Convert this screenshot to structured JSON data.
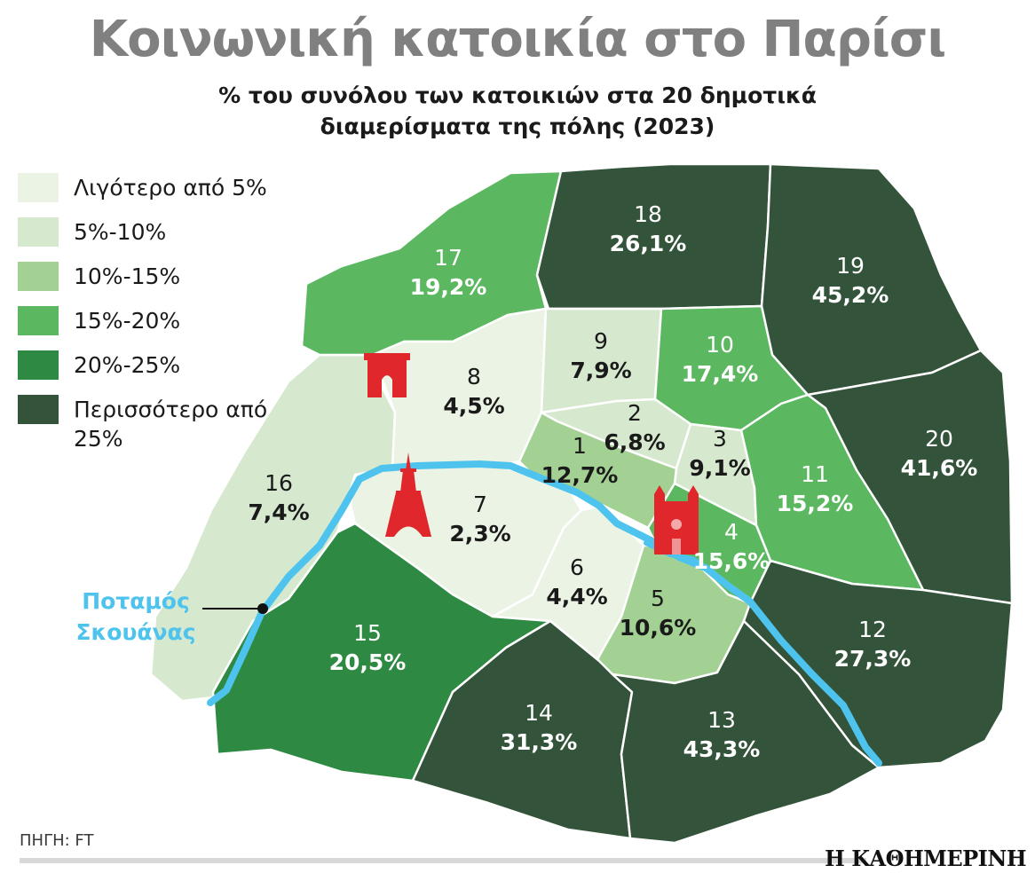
{
  "title": "Κοινωνική κατοικία στο Παρίσι",
  "subtitle_line1": "% του συνόλου των κατοικιών στα 20 δημοτικά",
  "subtitle_line2": "διαμερίσματα της πόλης (2023)",
  "legend": [
    {
      "label": "Λιγότερο από 5%",
      "color": "#eaf3e4"
    },
    {
      "label": "5%-10%",
      "color": "#d6e9cf"
    },
    {
      "label": "10%-15%",
      "color": "#a3d193"
    },
    {
      "label": "15%-20%",
      "color": "#5cb860"
    },
    {
      "label": "20%-25%",
      "color": "#2e8a42"
    },
    {
      "label": "Περισσότερο από 25%",
      "color": "#33543a"
    }
  ],
  "chart_data": {
    "type": "choropleth",
    "title": "Κοινωνική κατοικία στο Παρίσι",
    "subtitle": "% του συνόλου των κατοικιών στα 20 δημοτικά διαμερίσματα της πόλης (2023)",
    "arrondissements": [
      {
        "id": "1",
        "label": "12,7%",
        "value": 12.7
      },
      {
        "id": "2",
        "label": "6,8%",
        "value": 6.8
      },
      {
        "id": "3",
        "label": "9,1%",
        "value": 9.1
      },
      {
        "id": "4",
        "label": "15,6%",
        "value": 15.6
      },
      {
        "id": "5",
        "label": "10,6%",
        "value": 10.6
      },
      {
        "id": "6",
        "label": "4,4%",
        "value": 4.4
      },
      {
        "id": "7",
        "label": "2,3%",
        "value": 2.3
      },
      {
        "id": "8",
        "label": "4,5%",
        "value": 4.5
      },
      {
        "id": "9",
        "label": "7,9%",
        "value": 7.9
      },
      {
        "id": "10",
        "label": "17,4%",
        "value": 17.4
      },
      {
        "id": "11",
        "label": "15,2%",
        "value": 15.2
      },
      {
        "id": "12",
        "label": "27,3%",
        "value": 27.3
      },
      {
        "id": "13",
        "label": "43,3%",
        "value": 43.3
      },
      {
        "id": "14",
        "label": "31,3%",
        "value": 31.3
      },
      {
        "id": "15",
        "label": "20,5%",
        "value": 20.5
      },
      {
        "id": "16",
        "label": "7,4%",
        "value": 7.4
      },
      {
        "id": "17",
        "label": "19,2%",
        "value": 19.2
      },
      {
        "id": "18",
        "label": "26,1%",
        "value": 26.1
      },
      {
        "id": "19",
        "label": "45,2%",
        "value": 45.2
      },
      {
        "id": "20",
        "label": "41,6%",
        "value": 41.6
      }
    ]
  },
  "river": {
    "label_line1": "Ποταμός",
    "label_line2": "Σκουάνας",
    "color": "#4ec3ee"
  },
  "landmark_color": "#e0272b",
  "landmarks": [
    "arc-de-triomphe-icon",
    "eiffel-tower-icon",
    "notre-dame-icon"
  ],
  "source": "ΠΗΓΗ: FT",
  "brand": "Η ΚΑΘΗΜΕΡΙΝΗ"
}
